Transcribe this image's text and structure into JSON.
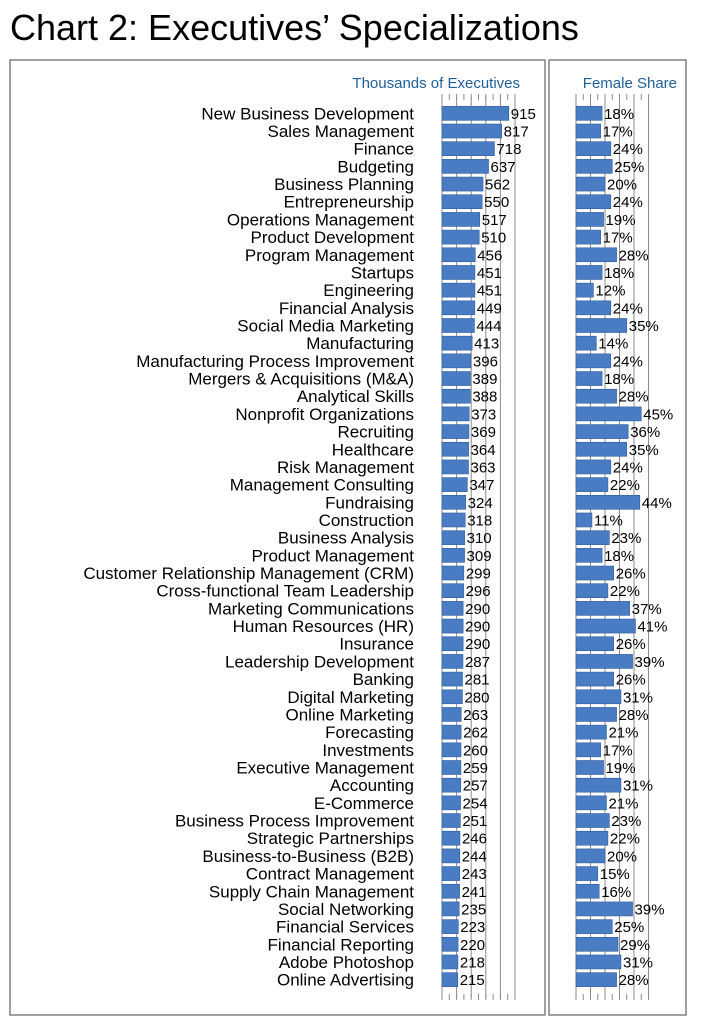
{
  "title": "Chart 2: Executives’ Specializations",
  "chart_data": [
    {
      "type": "bar",
      "orientation": "horizontal",
      "header": "Thousands of Executives",
      "categories": [
        "New Business Development",
        "Sales Management",
        "Finance",
        "Budgeting",
        "Business Planning",
        "Entrepreneurship",
        "Operations Management",
        "Product Development",
        "Program Management",
        "Startups",
        "Engineering",
        "Financial Analysis",
        "Social Media Marketing",
        "Manufacturing",
        "Manufacturing Process Improvement",
        "Mergers & Acquisitions (M&A)",
        "Analytical Skills",
        "Nonprofit Organizations",
        "Recruiting",
        "Healthcare",
        "Risk Management",
        "Management Consulting",
        "Fundraising",
        "Construction",
        "Business Analysis",
        "Product Management",
        "Customer Relationship Management (CRM)",
        "Cross-functional Team Leadership",
        "Marketing Communications",
        "Human Resources (HR)",
        "Insurance",
        "Leadership Development",
        "Banking",
        "Digital Marketing",
        "Online Marketing",
        "Forecasting",
        "Investments",
        "Executive Management",
        "Accounting",
        "E-Commerce",
        "Business Process Improvement",
        "Strategic Partnerships",
        "Business-to-Business (B2B)",
        "Contract Management",
        "Supply Chain Management",
        "Social Networking",
        "Financial Services",
        "Financial Reporting",
        "Adobe Photoshop",
        "Online Advertising"
      ],
      "values": [
        915,
        817,
        718,
        637,
        562,
        550,
        517,
        510,
        456,
        451,
        451,
        449,
        444,
        413,
        396,
        389,
        388,
        373,
        369,
        364,
        363,
        347,
        324,
        318,
        310,
        309,
        299,
        296,
        290,
        290,
        290,
        287,
        281,
        280,
        263,
        262,
        260,
        259,
        257,
        254,
        251,
        246,
        244,
        243,
        241,
        235,
        223,
        220,
        218,
        215
      ],
      "xlim": [
        0,
        1000
      ],
      "grid": true,
      "bar_color": "#4a7cc4"
    },
    {
      "type": "bar",
      "orientation": "horizontal",
      "header": "Female Share",
      "values": [
        18,
        17,
        24,
        25,
        20,
        24,
        19,
        17,
        28,
        18,
        12,
        24,
        35,
        14,
        24,
        18,
        28,
        45,
        36,
        35,
        24,
        22,
        44,
        11,
        23,
        18,
        26,
        22,
        37,
        41,
        26,
        39,
        26,
        31,
        28,
        21,
        17,
        19,
        31,
        21,
        23,
        22,
        20,
        15,
        16,
        39,
        25,
        29,
        31,
        28
      ],
      "value_suffix": "%",
      "xlim": [
        0,
        50
      ],
      "grid": true,
      "bar_color": "#4a7cc4"
    }
  ]
}
